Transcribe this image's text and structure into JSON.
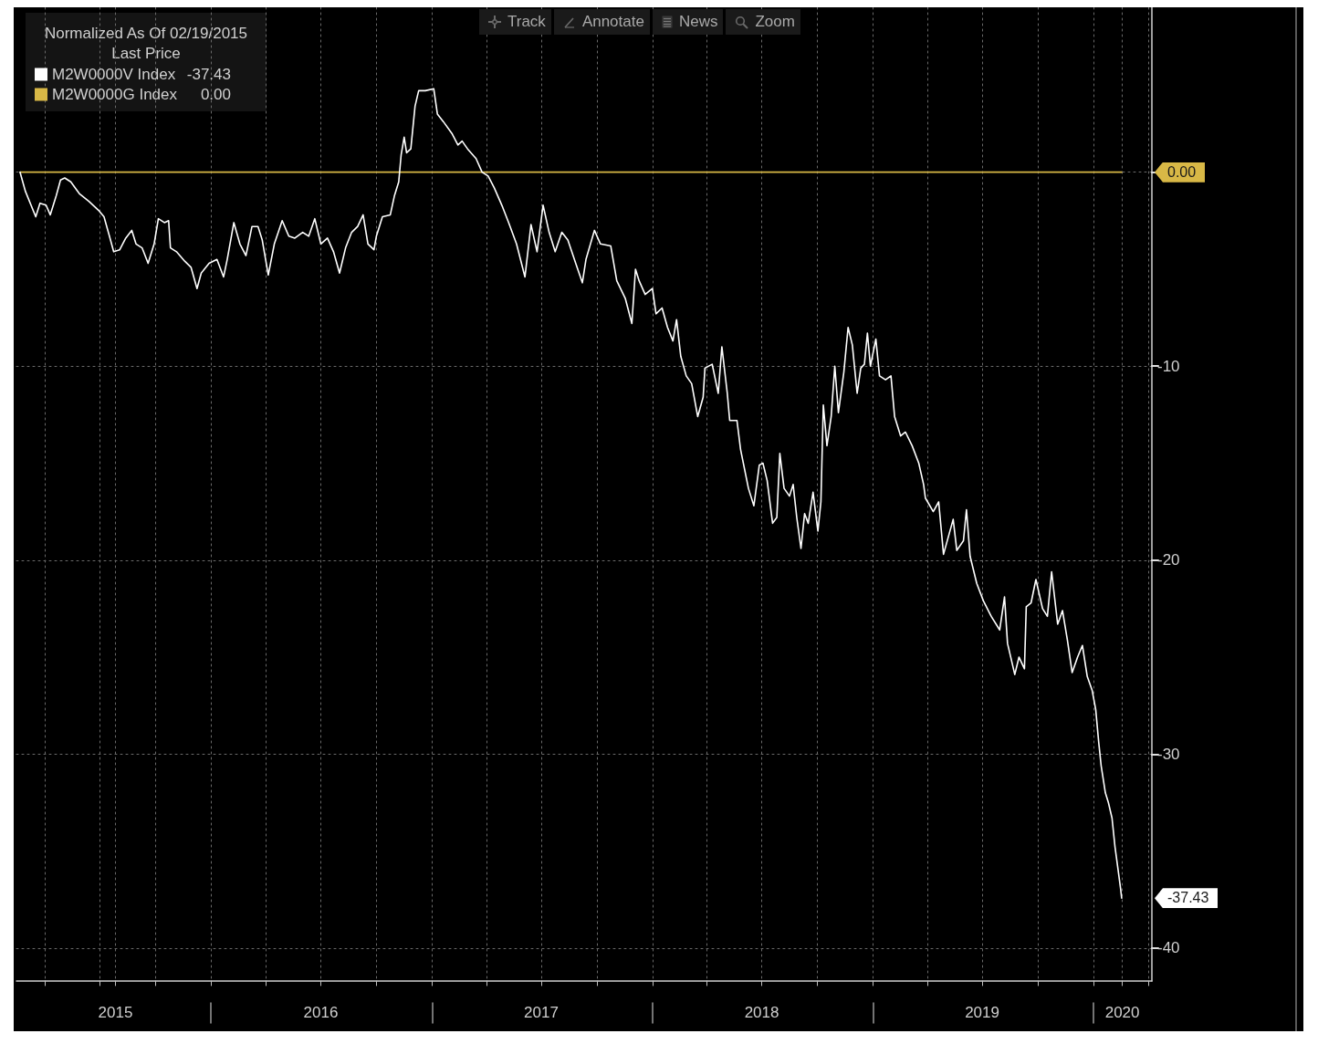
{
  "chart_data": {
    "type": "line",
    "legend_title": "Normalized As Of 02/19/2015",
    "x": [
      "2015-02-19",
      "2015-02-28",
      "2015-03-17",
      "2015-03-24",
      "2015-04-03",
      "2015-04-10",
      "2015-04-20",
      "2015-04-27",
      "2015-05-04",
      "2015-05-14",
      "2015-05-28",
      "2015-06-13",
      "2015-06-30",
      "2015-07-08",
      "2015-07-17",
      "2015-07-24",
      "2015-08-03",
      "2015-08-13",
      "2015-08-23",
      "2015-08-30",
      "2015-09-09",
      "2015-09-19",
      "2015-09-29",
      "2015-10-06",
      "2015-10-16",
      "2015-10-23",
      "2015-10-26",
      "2015-11-05",
      "2015-11-19",
      "2015-11-29",
      "2015-12-09",
      "2015-12-16",
      "2015-12-29",
      "2016-01-11",
      "2016-01-22",
      "2016-01-28",
      "2016-02-08",
      "2016-02-18",
      "2016-02-28",
      "2016-03-09",
      "2016-03-19",
      "2016-03-26",
      "2016-04-05",
      "2016-04-15",
      "2016-04-28",
      "2016-05-09",
      "2016-05-19",
      "2016-06-01",
      "2016-06-11",
      "2016-06-21",
      "2016-07-01",
      "2016-07-12",
      "2016-07-22",
      "2016-08-01",
      "2016-08-11",
      "2016-08-21",
      "2016-08-31",
      "2016-09-09",
      "2016-09-17",
      "2016-09-27",
      "2016-10-01",
      "2016-10-11",
      "2016-10-24",
      "2016-10-31",
      "2016-11-07",
      "2016-11-11",
      "2016-11-16",
      "2016-11-20",
      "2016-11-27",
      "2016-12-04",
      "2016-12-10",
      "2016-12-21",
      "2017-01-04",
      "2017-01-10",
      "2017-01-20",
      "2017-02-03",
      "2017-02-13",
      "2017-02-20",
      "2017-03-01",
      "2017-03-15",
      "2017-03-25",
      "2017-04-04",
      "2017-04-14",
      "2017-04-28",
      "2017-05-08",
      "2017-05-21",
      "2017-06-04",
      "2017-06-14",
      "2017-06-24",
      "2017-07-04",
      "2017-07-14",
      "2017-07-24",
      "2017-08-04",
      "2017-08-14",
      "2017-08-27",
      "2017-09-07",
      "2017-09-13",
      "2017-09-27",
      "2017-10-07",
      "2017-10-24",
      "2017-11-03",
      "2017-11-17",
      "2017-11-28",
      "2017-12-04",
      "2017-12-10",
      "2017-12-20",
      "2018-01-01",
      "2018-01-07",
      "2018-01-17",
      "2018-01-26",
      "2018-02-04",
      "2018-02-10",
      "2018-02-17",
      "2018-02-26",
      "2018-03-07",
      "2018-03-17",
      "2018-03-26",
      "2018-03-29",
      "2018-04-10",
      "2018-04-20",
      "2018-04-26",
      "2018-05-05",
      "2018-05-09",
      "2018-05-21",
      "2018-05-27",
      "2018-06-09",
      "2018-06-18",
      "2018-06-27",
      "2018-07-03",
      "2018-07-10",
      "2018-07-19",
      "2018-07-26",
      "2018-07-31",
      "2018-08-07",
      "2018-08-16",
      "2018-08-22",
      "2018-08-28",
      "2018-09-04",
      "2018-09-10",
      "2018-09-16",
      "2018-09-24",
      "2018-10-02",
      "2018-10-07",
      "2018-10-11",
      "2018-10-17",
      "2018-10-24",
      "2018-10-30",
      "2018-11-05",
      "2018-11-14",
      "2018-11-21",
      "2018-11-28",
      "2018-12-06",
      "2018-12-12",
      "2018-12-18",
      "2018-12-23",
      "2018-12-28",
      "2019-01-06",
      "2019-01-12",
      "2019-01-22",
      "2019-01-31",
      "2019-02-06",
      "2019-02-16",
      "2019-02-24",
      "2019-03-07",
      "2019-03-18",
      "2019-03-26",
      "2019-03-29",
      "2019-04-11",
      "2019-04-20",
      "2019-04-28",
      "2019-05-14",
      "2019-05-20",
      "2019-05-31",
      "2019-06-05",
      "2019-06-11",
      "2019-06-22",
      "2019-07-03",
      "2019-07-16",
      "2019-07-30",
      "2019-08-07",
      "2019-08-12",
      "2019-08-24",
      "2019-08-31",
      "2019-09-09",
      "2019-09-12",
      "2019-09-20",
      "2019-09-28",
      "2019-10-09",
      "2019-10-17",
      "2019-10-24",
      "2019-11-03",
      "2019-11-11",
      "2019-11-19",
      "2019-11-27",
      "2019-12-06",
      "2019-12-14",
      "2019-12-22",
      "2019-12-30",
      "2020-01-05",
      "2020-01-10",
      "2020-01-14",
      "2020-01-21",
      "2020-01-26",
      "2020-02-01",
      "2020-02-06",
      "2020-02-09",
      "2020-02-15",
      "2020-02-17"
    ],
    "series": [
      {
        "name": "M2W0000V Index",
        "color": "#ffffff",
        "values": [
          0,
          -1.0,
          -2.3,
          -1.6,
          -1.7,
          -2.2,
          -1.2,
          -0.4,
          -0.3,
          -0.5,
          -1.1,
          -1.5,
          -2.0,
          -2.3,
          -3.3,
          -4.1,
          -4.0,
          -3.4,
          -3.0,
          -3.7,
          -3.9,
          -4.7,
          -3.7,
          -2.4,
          -2.6,
          -2.5,
          -3.9,
          -4.1,
          -4.6,
          -4.9,
          -6.0,
          -5.2,
          -4.7,
          -4.5,
          -5.4,
          -4.5,
          -2.6,
          -3.7,
          -4.3,
          -2.8,
          -2.8,
          -3.5,
          -5.3,
          -3.7,
          -2.5,
          -3.3,
          -3.4,
          -3.1,
          -3.3,
          -2.4,
          -3.7,
          -3.4,
          -4.1,
          -5.2,
          -3.9,
          -3.1,
          -2.8,
          -2.2,
          -3.7,
          -4.0,
          -3.3,
          -2.3,
          -2.2,
          -1.2,
          -0.5,
          0.9,
          1.8,
          1.0,
          1.2,
          3.4,
          4.2,
          4.2,
          4.3,
          3.0,
          2.6,
          2.0,
          1.4,
          1.6,
          1.2,
          0.7,
          0.0,
          -0.2,
          -0.8,
          -1.8,
          -2.6,
          -3.7,
          -5.4,
          -2.7,
          -4.1,
          -1.7,
          -3.1,
          -4.1,
          -3.1,
          -3.5,
          -4.7,
          -5.7,
          -4.5,
          -3.0,
          -3.7,
          -3.8,
          -5.6,
          -6.5,
          -7.8,
          -5.0,
          -5.6,
          -6.3,
          -6.0,
          -7.3,
          -7.0,
          -8.0,
          -8.7,
          -7.6,
          -9.5,
          -10.5,
          -10.9,
          -12.6,
          -11.6,
          -10.1,
          -9.9,
          -11.4,
          -9.0,
          -11.4,
          -12.8,
          -12.8,
          -14.3,
          -16.3,
          -17.2,
          -15.1,
          -15.0,
          -15.9,
          -18.1,
          -17.8,
          -14.5,
          -16.3,
          -16.7,
          -16.1,
          -17.8,
          -19.4,
          -17.6,
          -18.1,
          -16.5,
          -18.5,
          -17.0,
          -12.0,
          -14.1,
          -12.6,
          -10.0,
          -12.4,
          -10.3,
          -8.0,
          -8.9,
          -11.4,
          -10.1,
          -9.9,
          -8.3,
          -10.0,
          -8.6,
          -10.5,
          -10.7,
          -10.5,
          -12.6,
          -13.6,
          -13.4,
          -14.1,
          -15.0,
          -16.1,
          -16.8,
          -17.5,
          -17.0,
          -19.7,
          -17.9,
          -19.5,
          -19.0,
          -17.4,
          -19.8,
          -21.2,
          -22.1,
          -22.9,
          -23.6,
          -21.9,
          -24.3,
          -25.9,
          -25.0,
          -25.6,
          -22.4,
          -22.2,
          -21.0,
          -22.5,
          -22.9,
          -20.6,
          -23.3,
          -22.6,
          -24.1,
          -25.8,
          -25.0,
          -24.4,
          -26.0,
          -26.7,
          -27.7,
          -29.4,
          -30.6,
          -32.0,
          -32.5,
          -33.3,
          -34.8,
          -35.5,
          -36.9,
          -37.43
        ]
      },
      {
        "name": "M2W0000G Index",
        "color": "#d8b846",
        "x": [
          "2015-02-19",
          "2020-02-17"
        ],
        "values": [
          0,
          0
        ]
      }
    ],
    "xlim": [
      "2015-02-13",
      "2020-04-07"
    ],
    "xticks": [
      {
        "value": "2015-04-01",
        "label": null
      },
      {
        "value": "2015-07-01",
        "label": null
      },
      {
        "value": "2015-07-27",
        "label": "2015"
      },
      {
        "value": "2015-10-01",
        "label": null
      },
      {
        "value": "2016-01-01",
        "label": null
      },
      {
        "value": "2016-04-01",
        "label": null
      },
      {
        "value": "2016-07-01",
        "label": "2016"
      },
      {
        "value": "2016-10-01",
        "label": null
      },
      {
        "value": "2017-01-01",
        "label": null
      },
      {
        "value": "2017-04-01",
        "label": null
      },
      {
        "value": "2017-07-01",
        "label": "2017"
      },
      {
        "value": "2017-10-01",
        "label": null
      },
      {
        "value": "2018-01-01",
        "label": null
      },
      {
        "value": "2018-04-01",
        "label": null
      },
      {
        "value": "2018-07-01",
        "label": "2018"
      },
      {
        "value": "2018-10-01",
        "label": null
      },
      {
        "value": "2019-01-01",
        "label": null
      },
      {
        "value": "2019-04-01",
        "label": null
      },
      {
        "value": "2019-07-01",
        "label": "2019"
      },
      {
        "value": "2019-10-01",
        "label": null
      },
      {
        "value": "2020-01-01",
        "label": null
      },
      {
        "value": "2020-02-18",
        "label": "2020"
      },
      {
        "value": "2020-04-01",
        "label": null
      }
    ],
    "ylim": [
      -41.7,
      8.5
    ],
    "yticks": [
      {
        "value": 0,
        "label": null
      },
      -10,
      -20,
      -30,
      -40
    ],
    "grid": true,
    "legend": "top left",
    "annotations": [
      "Last Price",
      "Track",
      "Annotate",
      "News",
      "Zoom",
      "-37.43",
      "0.00"
    ]
  }
}
